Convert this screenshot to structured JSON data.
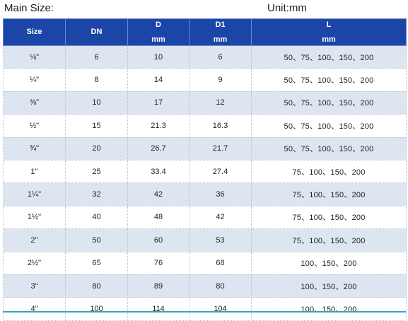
{
  "captions": {
    "main_size": "Main Size:",
    "unit": "Unit:mm"
  },
  "header": {
    "size": "Size",
    "dn": "DN",
    "d": "D",
    "d_unit": "mm",
    "d1": "D1",
    "d1_unit": "mm",
    "l": "L",
    "l_unit": "mm"
  },
  "rows": [
    {
      "size": "⅛\"",
      "dn": "6",
      "d": "10",
      "d1": "6",
      "l": "50、75、100、150、200"
    },
    {
      "size": "¼\"",
      "dn": "8",
      "d": "14",
      "d1": "9",
      "l": "50、75、100、150、200"
    },
    {
      "size": "⅜\"",
      "dn": "10",
      "d": "17",
      "d1": "12",
      "l": "50、75、100、150、200"
    },
    {
      "size": "½\"",
      "dn": "15",
      "d": "21.3",
      "d1": "16.3",
      "l": "50、75、100、150、200"
    },
    {
      "size": "¾\"",
      "dn": "20",
      "d": "26.7",
      "d1": "21.7",
      "l": "50、75、100、150、200"
    },
    {
      "size": "1''",
      "dn": "25",
      "d": "33.4",
      "d1": "27.4",
      "l": "75、100、150、200"
    },
    {
      "size": "1¼\"",
      "dn": "32",
      "d": "42",
      "d1": "36",
      "l": "75、100、150、200"
    },
    {
      "size": "1½\"",
      "dn": "40",
      "d": "48",
      "d1": "42",
      "l": "75、100、150、200"
    },
    {
      "size": "2''",
      "dn": "50",
      "d": "60",
      "d1": "53",
      "l": "75、100、150、200"
    },
    {
      "size": "2½\"",
      "dn": "65",
      "d": "76",
      "d1": "68",
      "l": "100、150、200"
    },
    {
      "size": "3\"",
      "dn": "80",
      "d": "89",
      "d1": "80",
      "l": "100、150、200"
    },
    {
      "size": "4\"",
      "dn": "100",
      "d": "114",
      "d1": "104",
      "l": "100、150、200"
    }
  ],
  "colors": {
    "header_bg": "#1b46a8",
    "stripe_bg": "#dde5f1",
    "accent_line": "#2ea7c4"
  }
}
